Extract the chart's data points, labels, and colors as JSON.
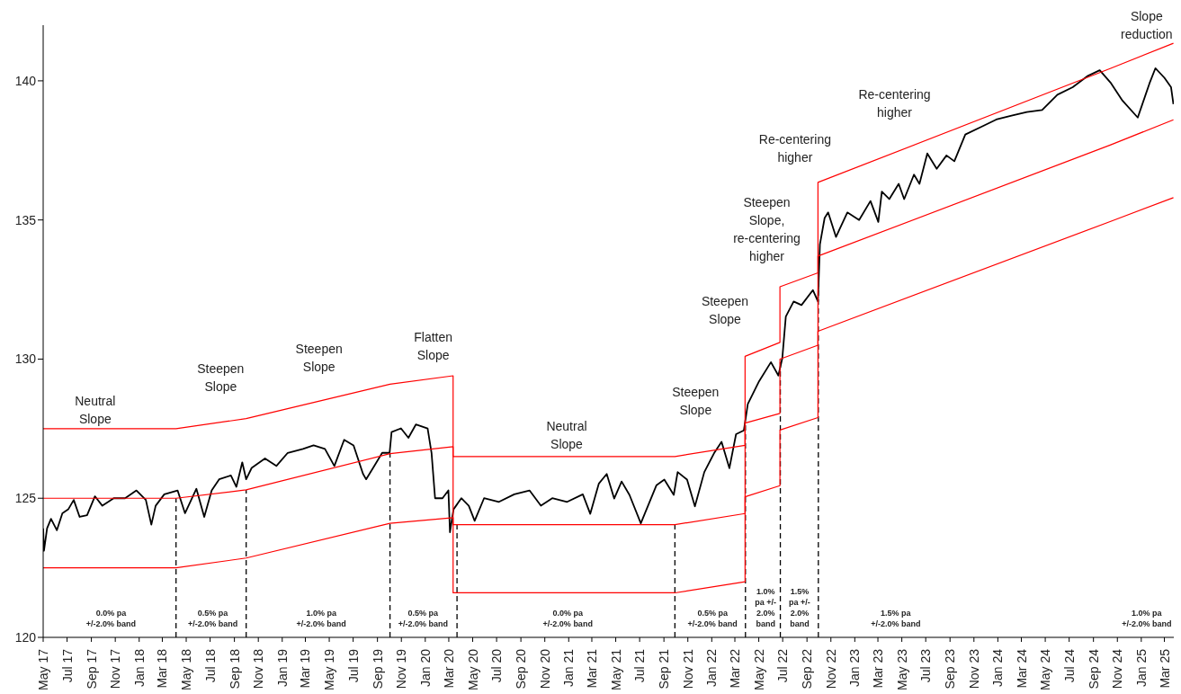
{
  "chart_data": {
    "type": "line",
    "xlim": [
      "2017-05-01",
      "2025-03-25"
    ],
    "xticks": [
      {
        "value": "2017-05",
        "label": "May 17"
      },
      {
        "value": "2017-07",
        "label": "Jul 17"
      },
      {
        "value": "2017-09",
        "label": "Sep 17"
      },
      {
        "value": "2017-11",
        "label": "Nov 17"
      },
      {
        "value": "2018-01",
        "label": "Jan 18"
      },
      {
        "value": "2018-03",
        "label": "Mar 18"
      },
      {
        "value": "2018-05",
        "label": "May 18"
      },
      {
        "value": "2018-07",
        "label": "Jul 18"
      },
      {
        "value": "2018-09",
        "label": "Sep 18"
      },
      {
        "value": "2018-11",
        "label": "Nov 18"
      },
      {
        "value": "2019-01",
        "label": "Jan 19"
      },
      {
        "value": "2019-03",
        "label": "Mar 19"
      },
      {
        "value": "2019-05",
        "label": "May 19"
      },
      {
        "value": "2019-07",
        "label": "Jul 19"
      },
      {
        "value": "2019-09",
        "label": "Sep 19"
      },
      {
        "value": "2019-11",
        "label": "Nov 19"
      },
      {
        "value": "2020-01",
        "label": "Jan 20"
      },
      {
        "value": "2020-03",
        "label": "Mar 20"
      },
      {
        "value": "2020-05",
        "label": "May 20"
      },
      {
        "value": "2020-07",
        "label": "Jul 20"
      },
      {
        "value": "2020-09",
        "label": "Sep 20"
      },
      {
        "value": "2020-11",
        "label": "Nov 20"
      },
      {
        "value": "2021-01",
        "label": "Jan 21"
      },
      {
        "value": "2021-03",
        "label": "Mar 21"
      },
      {
        "value": "2021-05",
        "label": "May 21"
      },
      {
        "value": "2021-07",
        "label": "Jul 21"
      },
      {
        "value": "2021-09",
        "label": "Sep 21"
      },
      {
        "value": "2021-11",
        "label": "Nov 21"
      },
      {
        "value": "2022-01",
        "label": "Jan 22"
      },
      {
        "value": "2022-03",
        "label": "Mar 22"
      },
      {
        "value": "2022-05",
        "label": "May 22"
      },
      {
        "value": "2022-07",
        "label": "Jul 22"
      },
      {
        "value": "2022-09",
        "label": "Sep 22"
      },
      {
        "value": "2022-11",
        "label": "Nov 22"
      },
      {
        "value": "2023-01",
        "label": "Jan 23"
      },
      {
        "value": "2023-03",
        "label": "Mar 23"
      },
      {
        "value": "2023-05",
        "label": "May 23"
      },
      {
        "value": "2023-07",
        "label": "Jul 23"
      },
      {
        "value": "2023-09",
        "label": "Sep 23"
      },
      {
        "value": "2023-11",
        "label": "Nov 23"
      },
      {
        "value": "2024-01",
        "label": "Jan 24"
      },
      {
        "value": "2024-03",
        "label": "Mar 24"
      },
      {
        "value": "2024-05",
        "label": "May 24"
      },
      {
        "value": "2024-07",
        "label": "Jul 24"
      },
      {
        "value": "2024-09",
        "label": "Sep 24"
      },
      {
        "value": "2024-11",
        "label": "Nov 24"
      },
      {
        "value": "2025-01",
        "label": "Jan 25"
      },
      {
        "value": "2025-03",
        "label": "Mar 25"
      }
    ],
    "ylim": [
      120,
      142
    ],
    "yticks": [
      120,
      125,
      130,
      135,
      140
    ],
    "grid": false,
    "legend": false,
    "marker": "none",
    "line_style": "solid",
    "series": [
      {
        "color": "#000000",
        "x": [
          "2017-05-01",
          "2017-05-03",
          "2017-05-11",
          "2017-05-21",
          "2017-06-05",
          "2017-06-19",
          "2017-07-04",
          "2017-07-18",
          "2017-08-02",
          "2017-08-21",
          "2017-09-10",
          "2017-09-29",
          "2017-10-28",
          "2017-11-26",
          "2017-12-25",
          "2018-01-18",
          "2018-02-01",
          "2018-02-12",
          "2018-03-06",
          "2018-04-09",
          "2018-04-28",
          "2018-05-27",
          "2018-06-16",
          "2018-07-05",
          "2018-07-24",
          "2018-08-23",
          "2018-09-06",
          "2018-09-21",
          "2018-10-01",
          "2018-10-15",
          "2018-11-18",
          "2018-12-17",
          "2019-01-15",
          "2019-02-23",
          "2019-03-22",
          "2019-04-20",
          "2019-05-14",
          "2019-06-08",
          "2019-07-02",
          "2019-07-26",
          "2019-08-03",
          "2019-08-24",
          "2019-09-13",
          "2019-10-02",
          "2019-10-07",
          "2019-10-31",
          "2019-11-19",
          "2019-12-08",
          "2020-01-07",
          "2020-01-17",
          "2020-01-26",
          "2020-02-14",
          "2020-02-29",
          "2020-03-04",
          "2020-03-13",
          "2020-04-02",
          "2020-04-21",
          "2020-05-06",
          "2020-05-30",
          "2020-07-07",
          "2020-08-15",
          "2020-09-23",
          "2020-10-22",
          "2020-11-20",
          "2020-12-28",
          "2021-02-06",
          "2021-02-25",
          "2021-03-19",
          "2021-04-08",
          "2021-04-27",
          "2021-05-16",
          "2021-06-05",
          "2021-07-04",
          "2021-08-13",
          "2021-09-02",
          "2021-09-26",
          "2021-10-06",
          "2021-10-30",
          "2021-11-19",
          "2021-12-13",
          "2022-01-07",
          "2022-01-26",
          "2022-02-15",
          "2022-03-04",
          "2022-03-24",
          "2022-04-03",
          "2022-05-02",
          "2022-06-01",
          "2022-06-20",
          "2022-06-30",
          "2022-07-09",
          "2022-07-29",
          "2022-08-18",
          "2022-09-16",
          "2022-09-29",
          "2022-10-04",
          "2022-10-16",
          "2022-10-25",
          "2022-11-14",
          "2022-12-13",
          "2023-01-12",
          "2023-02-10",
          "2023-03-02",
          "2023-03-11",
          "2023-03-30",
          "2023-04-23",
          "2023-05-07",
          "2023-06-01",
          "2023-06-15",
          "2023-07-05",
          "2023-07-29",
          "2023-08-23",
          "2023-09-12",
          "2023-10-10",
          "2023-11-19",
          "2023-12-28",
          "2024-02-05",
          "2024-03-15",
          "2024-04-23",
          "2024-06-01",
          "2024-07-10",
          "2024-08-18",
          "2024-09-17",
          "2024-10-16",
          "2024-11-14",
          "2024-12-23",
          "2025-01-12",
          "2025-01-22",
          "2025-02-06",
          "2025-03-01",
          "2025-03-18",
          "2025-03-24"
        ],
        "values": [
          123.92,
          123.11,
          123.92,
          124.26,
          123.85,
          124.46,
          124.6,
          124.94,
          124.33,
          124.39,
          125.07,
          124.73,
          125.0,
          125.0,
          125.28,
          124.94,
          124.05,
          124.73,
          125.14,
          125.28,
          124.46,
          125.34,
          124.33,
          125.28,
          125.68,
          125.82,
          125.41,
          126.29,
          125.68,
          126.09,
          126.43,
          126.16,
          126.63,
          126.77,
          126.9,
          126.77,
          126.16,
          127.1,
          126.9,
          125.88,
          125.68,
          126.16,
          126.63,
          126.63,
          127.38,
          127.51,
          127.17,
          127.65,
          127.51,
          126.63,
          125.0,
          125.0,
          125.28,
          123.78,
          124.6,
          125.0,
          124.73,
          124.19,
          125.0,
          124.87,
          125.14,
          125.28,
          124.73,
          125.0,
          124.87,
          125.14,
          124.44,
          125.53,
          125.87,
          124.99,
          125.6,
          125.12,
          124.1,
          125.47,
          125.67,
          125.12,
          125.94,
          125.67,
          124.71,
          125.94,
          126.62,
          127.03,
          126.08,
          127.3,
          127.44,
          128.39,
          129.21,
          129.89,
          129.41,
          130.03,
          131.53,
          132.07,
          131.94,
          132.48,
          132.07,
          134.12,
          135.07,
          135.27,
          134.39,
          135.27,
          135.0,
          135.68,
          134.93,
          136.02,
          135.75,
          136.3,
          135.75,
          136.63,
          136.3,
          137.39,
          136.84,
          137.32,
          137.11,
          138.07,
          138.34,
          138.61,
          138.75,
          138.88,
          138.95,
          139.5,
          139.77,
          140.18,
          140.38,
          139.91,
          139.29,
          138.68,
          139.5,
          139.91,
          140.45,
          140.11,
          139.77,
          139.16
        ]
      },
      {
        "color": "#ff0000",
        "x": [
          "2017-05-01",
          "2018-04-05",
          "2018-10-01",
          "2019-10-03",
          "2020-03-12",
          "2020-03-12",
          "2021-09-29",
          "2022-03-27",
          "2022-03-27",
          "2022-06-24",
          "2022-06-24",
          "2022-09-29",
          "2022-09-29",
          "2024-10-15",
          "2025-03-24"
        ],
        "values": [
          127.5,
          127.5,
          127.86,
          129.1,
          129.4,
          126.5,
          126.5,
          126.9,
          130.1,
          130.6,
          132.6,
          133.1,
          136.35,
          140.45,
          141.35
        ]
      },
      {
        "color": "#ff0000",
        "x": [
          "2017-05-01",
          "2018-04-05",
          "2018-10-01",
          "2019-10-03",
          "2020-03-12",
          "2020-03-12",
          "2021-09-29",
          "2022-03-27",
          "2022-03-27",
          "2022-06-24",
          "2022-06-24",
          "2022-09-29",
          "2022-09-29",
          "2024-10-15",
          "2025-03-24"
        ],
        "values": [
          125.0,
          125.0,
          125.3,
          126.6,
          126.85,
          124.05,
          124.05,
          124.45,
          127.7,
          128.05,
          130.0,
          130.5,
          133.7,
          137.7,
          138.6
        ]
      },
      {
        "color": "#ff0000",
        "x": [
          "2017-05-01",
          "2018-04-05",
          "2018-10-01",
          "2019-10-03",
          "2020-03-12",
          "2020-03-12",
          "2021-09-29",
          "2022-03-27",
          "2022-03-27",
          "2022-06-24",
          "2022-06-24",
          "2022-09-29",
          "2022-09-29",
          "2024-10-15",
          "2025-03-24"
        ],
        "values": [
          122.5,
          122.5,
          122.85,
          124.1,
          124.3,
          121.6,
          121.6,
          122.0,
          125.05,
          125.45,
          127.45,
          127.9,
          131.0,
          134.95,
          135.8
        ]
      }
    ],
    "ref_lines": [
      {
        "axis": "x",
        "value": "2018-04-05",
        "color": "#000000",
        "line_style": "dashed"
      },
      {
        "axis": "x",
        "value": "2018-10-01",
        "color": "#000000",
        "line_style": "dashed"
      },
      {
        "axis": "x",
        "value": "2019-10-03",
        "color": "#000000",
        "line_style": "dashed"
      },
      {
        "axis": "x",
        "value": "2020-03-22",
        "color": "#000000",
        "line_style": "dashed"
      },
      {
        "axis": "x",
        "value": "2021-09-29",
        "color": "#000000",
        "line_style": "dashed"
      },
      {
        "axis": "x",
        "value": "2022-03-28",
        "color": "#000000",
        "line_style": "dashed"
      },
      {
        "axis": "x",
        "value": "2022-06-25",
        "color": "#000000",
        "line_style": "dashed"
      },
      {
        "axis": "x",
        "value": "2022-09-30",
        "color": "#000000",
        "line_style": "dashed"
      }
    ],
    "annotations": [
      "Neutral Slope",
      "Steepen Slope",
      "Steepen Slope",
      "Flatten Slope",
      "Neutral Slope",
      "Steepen Slope",
      "Steepen Slope",
      "Steepen Slope, re-centering higher",
      "Re-centering higher",
      "Re-centering higher",
      "Slope reduction",
      "0.0% pa +/-2.0% band",
      "0.5% pa +/-2.0% band",
      "1.0% pa +/-2.0% band",
      "0.5% pa +/-2.0% band",
      "0.0% pa +/-2.0% band",
      "0.5% pa +/-2.0% band",
      "1.0% pa +/-2.0% band",
      "1.5% pa +/-2.0% band",
      "1.5% pa +/-2.0% band",
      "1.0% pa +/-2.0% band"
    ]
  }
}
